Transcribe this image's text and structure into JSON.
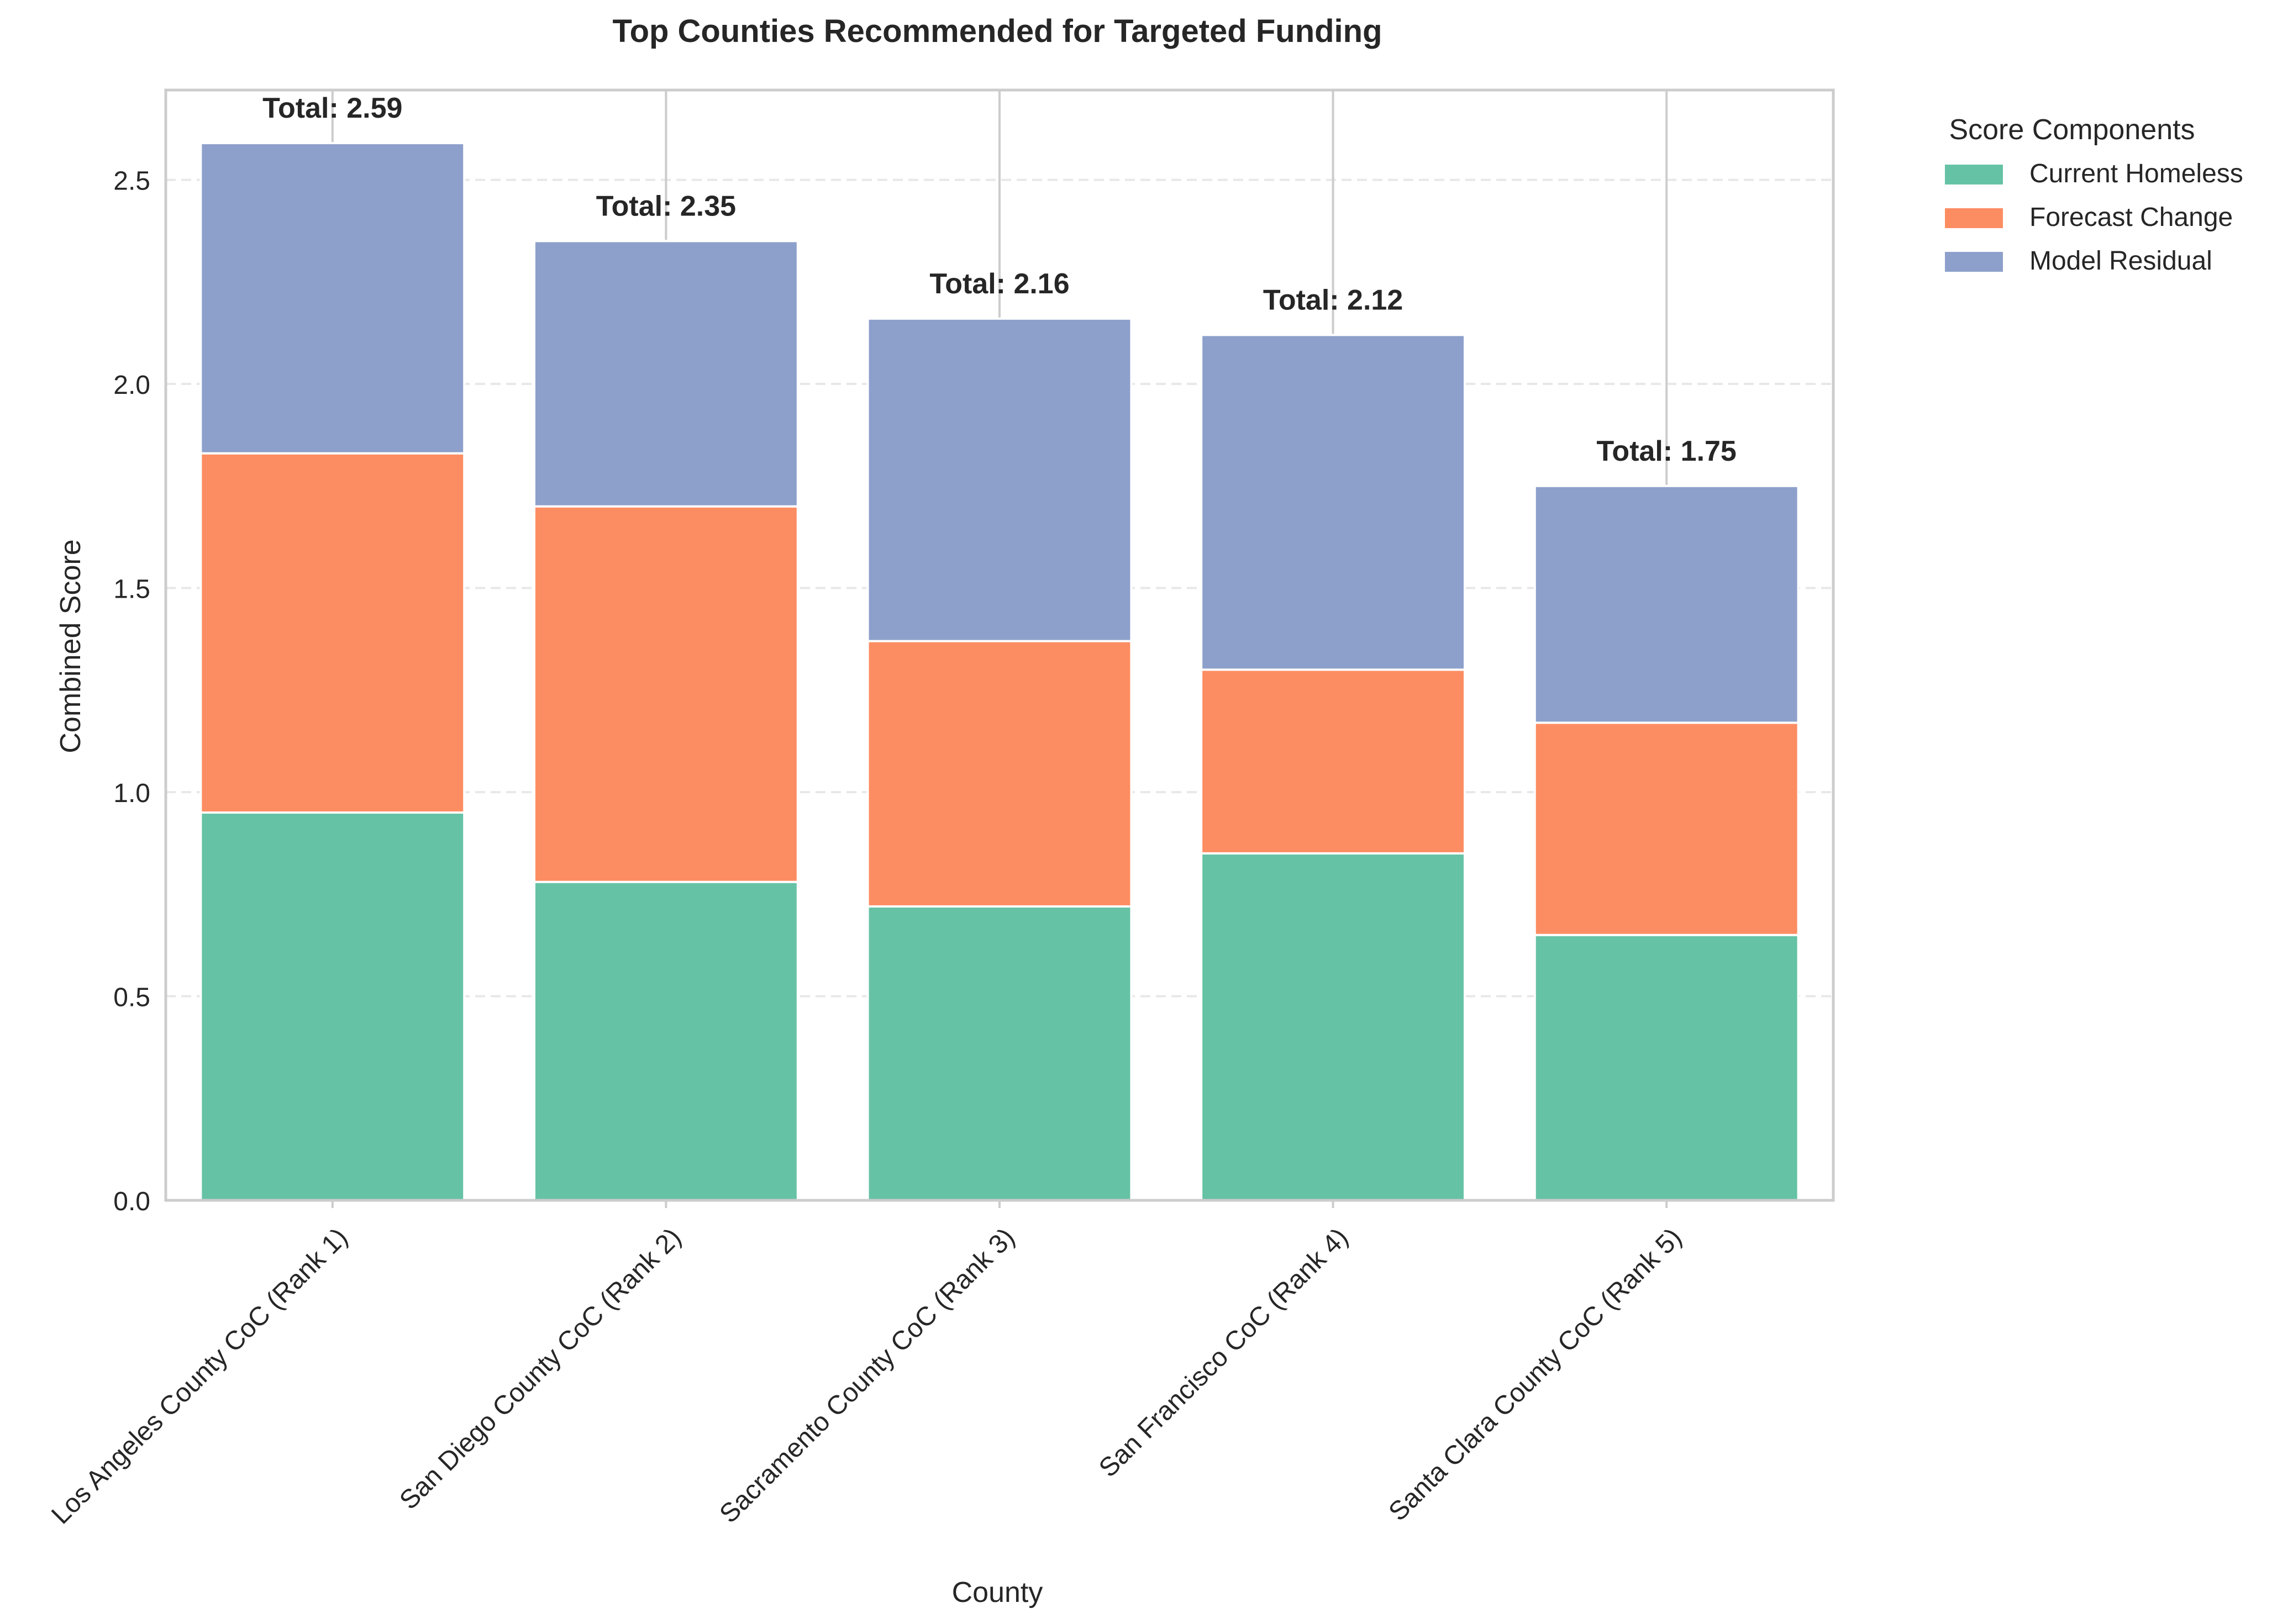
{
  "chart_data": {
    "type": "bar",
    "stacked": true,
    "title": "Top Counties Recommended for Targeted Funding",
    "xlabel": "County",
    "ylabel": "Combined Score",
    "ylim": [
      0,
      2.72
    ],
    "yticks": [
      0.0,
      0.5,
      1.0,
      1.5,
      2.0,
      2.5
    ],
    "ytick_labels": [
      "0.0",
      "0.5",
      "1.0",
      "1.5",
      "2.0",
      "2.5"
    ],
    "grid": "horizontal dashed",
    "categories": [
      "Los Angeles County CoC (Rank 1)",
      "San Diego County CoC (Rank 2)",
      "Sacramento County CoC (Rank 3)",
      "San Francisco CoC (Rank 4)",
      "Santa Clara County CoC (Rank 5)"
    ],
    "series": [
      {
        "name": "Current Homeless",
        "color": "#66c2a5",
        "values": [
          0.95,
          0.78,
          0.72,
          0.85,
          0.65
        ]
      },
      {
        "name": "Forecast Change",
        "color": "#fc8d62",
        "values": [
          0.88,
          0.92,
          0.65,
          0.45,
          0.52
        ]
      },
      {
        "name": "Model Residual",
        "color": "#8da0cb",
        "values": [
          0.76,
          0.65,
          0.79,
          0.82,
          0.58
        ]
      }
    ],
    "totals": [
      2.59,
      2.35,
      2.16,
      2.12,
      1.75
    ],
    "total_labels": [
      "Total: 2.59",
      "Total: 2.35",
      "Total: 2.16",
      "Total: 2.12",
      "Total: 1.75"
    ],
    "legend": {
      "title": "Score Components",
      "placement": "outside-upper-right"
    }
  }
}
